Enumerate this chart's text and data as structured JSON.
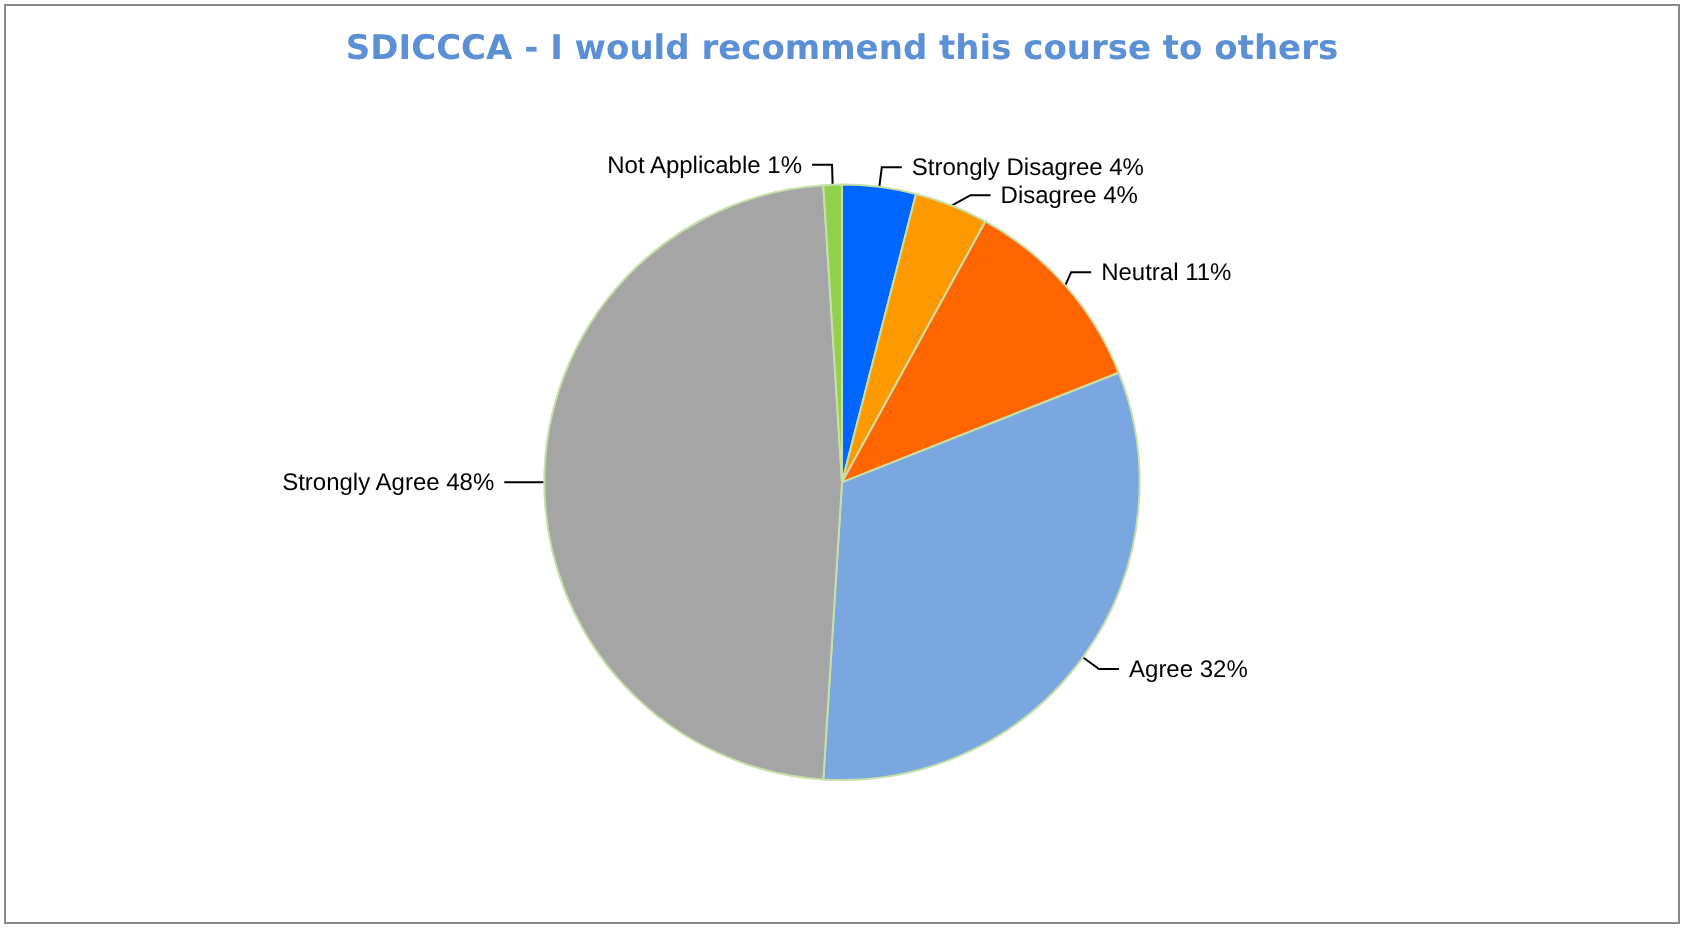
{
  "chart_data": {
    "type": "pie",
    "title": "SDICCCA - I would recommend this course to others",
    "categories": [
      "Strongly Disagree",
      "Disagree",
      "Neutral",
      "Agree",
      "Strongly Agree",
      "Not Applicable"
    ],
    "values": [
      4,
      4,
      11,
      32,
      48,
      1
    ],
    "value_labels": [
      "4%",
      "4%",
      "11%",
      "32%",
      "48%",
      "1%"
    ],
    "colors": [
      "#0066ff",
      "#ff9900",
      "#ff6600",
      "#7aa7df",
      "#a5a5a5",
      "#92d050"
    ],
    "legend": false
  }
}
